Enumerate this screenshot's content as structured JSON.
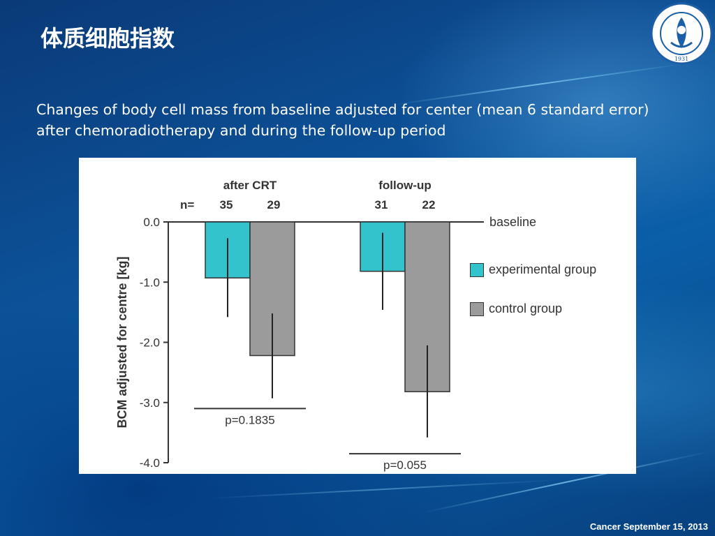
{
  "slide": {
    "title": "体质细胞指数",
    "subtitle": "Changes of body cell mass from baseline adjusted for center (mean 6 standard error) after chemoradiotherapy and during the follow-up period",
    "footer": "Cancer September 15, 2013",
    "logo": {
      "icon": "university-hospital-seal-icon",
      "year": "1931"
    }
  },
  "colors": {
    "experimental": "#33c3cc",
    "control": "#9b9b9b",
    "axis": "#333333"
  },
  "chart_data": {
    "type": "bar",
    "categories": [
      "after CRT",
      "follow-up"
    ],
    "series": [
      {
        "name": "experimental group",
        "values": [
          -0.93,
          -0.82
        ],
        "error_low": [
          -1.58,
          -1.46
        ],
        "error_high": [
          -0.27,
          -0.18
        ],
        "n": [
          "35",
          "31"
        ]
      },
      {
        "name": "control group",
        "values": [
          -2.22,
          -2.82
        ],
        "error_low": [
          -2.93,
          -3.58
        ],
        "error_high": [
          -1.52,
          -2.05
        ],
        "n": [
          "29",
          "22"
        ]
      }
    ],
    "ylabel": "BCM adjusted for centre [kg]",
    "ylim": [
      -4.0,
      0.0
    ],
    "yticks": [
      {
        "value": 0.0,
        "label": "0.0"
      },
      {
        "value": -1.0,
        "label": "-1.0"
      },
      {
        "value": -2.0,
        "label": "-2.0"
      },
      {
        "value": -3.0,
        "label": "-3.0"
      },
      {
        "value": -4.0,
        "label": "-4.0"
      }
    ],
    "n_label": "n=",
    "baseline_label": "baseline",
    "pvalues": [
      "p=0.1835",
      "p=0.055"
    ],
    "pvalue_line_y": [
      -3.1,
      -3.85
    ],
    "legend_position": "right"
  }
}
